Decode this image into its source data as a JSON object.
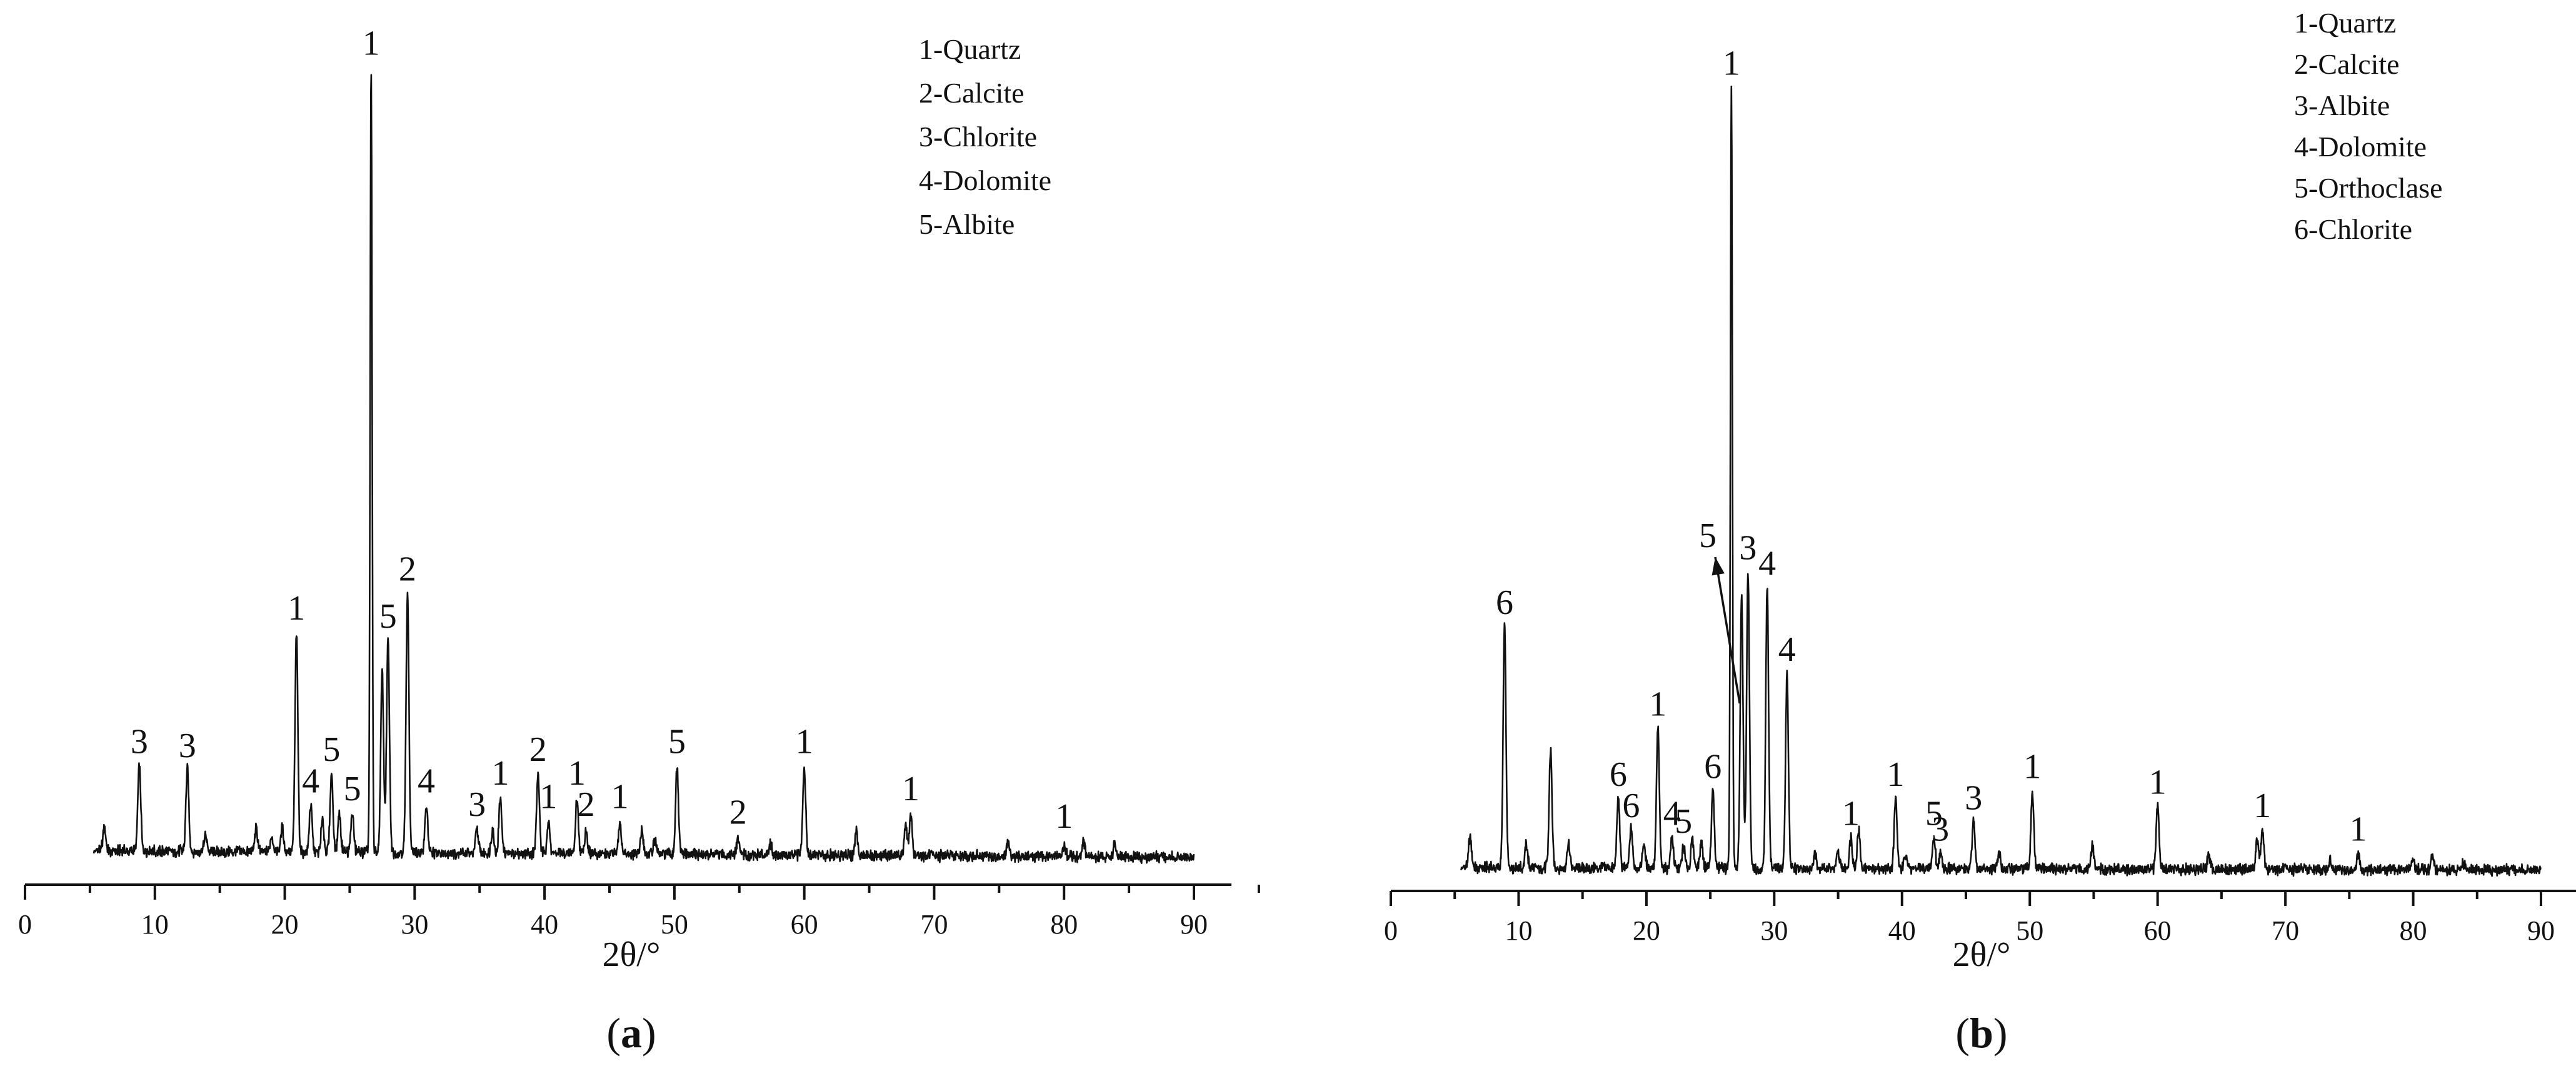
{
  "chart_data": [
    {
      "type": "line",
      "panel_label": "a",
      "xlabel": "2θ/°",
      "ylabel": "",
      "xlim": [
        0,
        90
      ],
      "x_ticks": [
        0,
        10,
        20,
        30,
        40,
        50,
        60,
        70,
        80,
        90
      ],
      "y_axis_shown": false,
      "grid": false,
      "legend_position": "top-right",
      "legend": [
        "1-Quartz",
        "2-Calcite",
        "3-Chlorite",
        "4-Dolomite",
        "5-Albite"
      ],
      "intensity_units": "relative (0-100)",
      "baseline": 2.5,
      "x_range": [
        5.3,
        90
      ],
      "peaks": [
        {
          "x": 6.1,
          "y": 3
        },
        {
          "x": 8.8,
          "y": 11,
          "label": "3"
        },
        {
          "x": 12.5,
          "y": 10.5,
          "label": "3"
        },
        {
          "x": 13.9,
          "y": 2
        },
        {
          "x": 17.8,
          "y": 3
        },
        {
          "x": 19.0,
          "y": 2
        },
        {
          "x": 19.8,
          "y": 3
        },
        {
          "x": 20.9,
          "y": 28,
          "label": "1"
        },
        {
          "x": 22.0,
          "y": 6,
          "label": "4"
        },
        {
          "x": 22.9,
          "y": 4
        },
        {
          "x": 23.6,
          "y": 10,
          "label": "5"
        },
        {
          "x": 24.2,
          "y": 5
        },
        {
          "x": 25.2,
          "y": 5,
          "label": "5"
        },
        {
          "x": 26.65,
          "y": 100,
          "label": "1"
        },
        {
          "x": 27.5,
          "y": 23
        },
        {
          "x": 27.95,
          "y": 27,
          "label": "5"
        },
        {
          "x": 29.45,
          "y": 33,
          "label": "2"
        },
        {
          "x": 30.9,
          "y": 6,
          "label": "4"
        },
        {
          "x": 34.8,
          "y": 3,
          "label": "3"
        },
        {
          "x": 36.0,
          "y": 3
        },
        {
          "x": 36.6,
          "y": 7,
          "label": "1"
        },
        {
          "x": 39.5,
          "y": 10,
          "label": "2"
        },
        {
          "x": 40.3,
          "y": 4,
          "label": "1"
        },
        {
          "x": 42.5,
          "y": 7,
          "label": "1"
        },
        {
          "x": 43.2,
          "y": 3,
          "label": "2"
        },
        {
          "x": 45.8,
          "y": 4,
          "label": "1"
        },
        {
          "x": 47.5,
          "y": 3
        },
        {
          "x": 48.5,
          "y": 2
        },
        {
          "x": 50.2,
          "y": 11,
          "label": "5"
        },
        {
          "x": 54.9,
          "y": 2,
          "label": "2"
        },
        {
          "x": 57.4,
          "y": 1.5
        },
        {
          "x": 60.0,
          "y": 11,
          "label": "1"
        },
        {
          "x": 64.0,
          "y": 3
        },
        {
          "x": 67.8,
          "y": 4
        },
        {
          "x": 68.2,
          "y": 5,
          "label": "1"
        },
        {
          "x": 75.7,
          "y": 2
        },
        {
          "x": 80.0,
          "y": 1.5,
          "label": "1"
        },
        {
          "x": 81.5,
          "y": 2
        },
        {
          "x": 83.9,
          "y": 1.5
        }
      ],
      "annotations": [
        {
          "text": "3",
          "x": 8.8
        },
        {
          "text": "3",
          "x": 12.5
        },
        {
          "text": "1",
          "x": 20.9
        },
        {
          "text": "4",
          "x": 22.0
        },
        {
          "text": "5",
          "x": 23.6
        },
        {
          "text": "5",
          "x": 25.2
        },
        {
          "text": "1",
          "x": 26.65
        },
        {
          "text": "5",
          "x": 27.95
        },
        {
          "text": "2",
          "x": 29.45
        },
        {
          "text": "4",
          "x": 30.9
        },
        {
          "text": "3",
          "x": 34.8
        },
        {
          "text": "1",
          "x": 36.6
        },
        {
          "text": "2",
          "x": 39.5
        },
        {
          "text": "1",
          "x": 40.3
        },
        {
          "text": "1",
          "x": 42.5
        },
        {
          "text": "2",
          "x": 43.2
        },
        {
          "text": "1",
          "x": 45.8
        },
        {
          "text": "5",
          "x": 50.2
        },
        {
          "text": "2",
          "x": 54.9
        },
        {
          "text": "1",
          "x": 60.0
        },
        {
          "text": "1",
          "x": 68.2
        },
        {
          "text": "1",
          "x": 80.0
        }
      ]
    },
    {
      "type": "line",
      "panel_label": "b",
      "xlabel": "2θ/°",
      "ylabel": "",
      "xlim": [
        0,
        90
      ],
      "x_ticks": [
        0,
        10,
        20,
        30,
        40,
        50,
        60,
        70,
        80,
        90
      ],
      "y_axis_shown": false,
      "grid": false,
      "legend_position": "top-right",
      "legend": [
        "1-Quartz",
        "2-Calcite",
        "3-Albite",
        "4-Dolomite",
        "5-Orthoclase",
        "6-Chlorite"
      ],
      "intensity_units": "relative (0-100)",
      "baseline": 1.0,
      "x_range": [
        5.5,
        90
      ],
      "peaks": [
        {
          "x": 6.2,
          "y": 4
        },
        {
          "x": 8.9,
          "y": 31,
          "label": "6"
        },
        {
          "x": 10.6,
          "y": 3
        },
        {
          "x": 12.5,
          "y": 15
        },
        {
          "x": 13.9,
          "y": 3
        },
        {
          "x": 17.8,
          "y": 9,
          "label": "6"
        },
        {
          "x": 18.8,
          "y": 5,
          "label": "6"
        },
        {
          "x": 19.8,
          "y": 3
        },
        {
          "x": 20.9,
          "y": 18,
          "label": "1"
        },
        {
          "x": 22.0,
          "y": 4,
          "label": "4"
        },
        {
          "x": 22.9,
          "y": 3,
          "label": "5"
        },
        {
          "x": 23.6,
          "y": 3.5
        },
        {
          "x": 24.3,
          "y": 3.5
        },
        {
          "x": 25.2,
          "y": 10,
          "label": "6"
        },
        {
          "x": 26.65,
          "y": 100,
          "label": "1"
        },
        {
          "x": 27.45,
          "y": 35
        },
        {
          "x": 27.95,
          "y": 38,
          "label": "3"
        },
        {
          "x": 29.45,
          "y": 36,
          "label": "4"
        },
        {
          "x": 31.0,
          "y": 25,
          "label": "4"
        },
        {
          "x": 33.2,
          "y": 2
        },
        {
          "x": 35.0,
          "y": 2
        },
        {
          "x": 36.0,
          "y": 4,
          "label": "1"
        },
        {
          "x": 36.6,
          "y": 5
        },
        {
          "x": 39.5,
          "y": 9,
          "label": "1"
        },
        {
          "x": 40.3,
          "y": 2
        },
        {
          "x": 42.5,
          "y": 4,
          "label": "5"
        },
        {
          "x": 43.0,
          "y": 2,
          "label": "3"
        },
        {
          "x": 45.6,
          "y": 6,
          "label": "3"
        },
        {
          "x": 47.6,
          "y": 2
        },
        {
          "x": 50.2,
          "y": 10,
          "label": "1"
        },
        {
          "x": 54.9,
          "y": 3
        },
        {
          "x": 60.0,
          "y": 8,
          "label": "1"
        },
        {
          "x": 64.0,
          "y": 2
        },
        {
          "x": 67.8,
          "y": 4
        },
        {
          "x": 68.2,
          "y": 5,
          "label": "1"
        },
        {
          "x": 73.5,
          "y": 1
        },
        {
          "x": 75.7,
          "y": 2,
          "label": "1"
        },
        {
          "x": 80.0,
          "y": 1.5
        },
        {
          "x": 81.5,
          "y": 2
        },
        {
          "x": 83.9,
          "y": 1
        }
      ],
      "annotations": [
        {
          "text": "6",
          "x": 8.9
        },
        {
          "text": "6",
          "x": 17.8
        },
        {
          "text": "6",
          "x": 18.8
        },
        {
          "text": "1",
          "x": 20.9
        },
        {
          "text": "4",
          "x": 22.0
        },
        {
          "text": "5",
          "x": 22.9
        },
        {
          "text": "6",
          "x": 25.2
        },
        {
          "text": "5",
          "x": 24.8,
          "arrow_to_x": 27.3
        },
        {
          "text": "1",
          "x": 26.65
        },
        {
          "text": "3",
          "x": 27.95
        },
        {
          "text": "4",
          "x": 29.45
        },
        {
          "text": "4",
          "x": 31.0
        },
        {
          "text": "1",
          "x": 36.0
        },
        {
          "text": "1",
          "x": 39.5
        },
        {
          "text": "5",
          "x": 42.5
        },
        {
          "text": "3",
          "x": 43.0
        },
        {
          "text": "3",
          "x": 45.6
        },
        {
          "text": "1",
          "x": 50.2
        },
        {
          "text": "1",
          "x": 60.0
        },
        {
          "text": "1",
          "x": 68.2
        },
        {
          "text": "1",
          "x": 75.7
        }
      ]
    }
  ]
}
